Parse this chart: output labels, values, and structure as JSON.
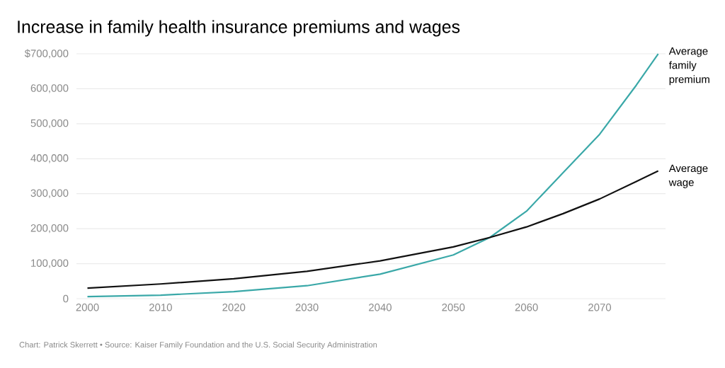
{
  "chart_data": {
    "type": "line",
    "title": "Increase in family health insurance premiums and wages",
    "annotations": [
      "Chart: Patrick Skerrett • Source: Kaiser Family Foundation and the U.S. Social Security Administration"
    ],
    "x": [
      2000,
      2010,
      2020,
      2030,
      2040,
      2050,
      2055,
      2060,
      2065,
      2070,
      2075,
      2078
    ],
    "series": [
      {
        "name": "Average family premium",
        "color": "#3aa8a8",
        "values": [
          6000,
          10000,
          20000,
          37000,
          70000,
          125000,
          175000,
          250000,
          360000,
          470000,
          610000,
          700000
        ]
      },
      {
        "name": "Average wage",
        "color": "#111111",
        "values": [
          30000,
          42000,
          57000,
          78000,
          108000,
          148000,
          175000,
          205000,
          243000,
          285000,
          335000,
          365000
        ]
      }
    ],
    "xlim": [
      1998.5,
      2079
    ],
    "ylim": [
      0,
      700000
    ],
    "xticks": [
      2000,
      2010,
      2020,
      2030,
      2040,
      2050,
      2060,
      2070
    ],
    "yticks": [
      {
        "value": 0,
        "label": "0"
      },
      {
        "value": 100000,
        "label": "100,000"
      },
      {
        "value": 200000,
        "label": "200,000"
      },
      {
        "value": 300000,
        "label": "300,000"
      },
      {
        "value": 400000,
        "label": "400,000"
      },
      {
        "value": 500000,
        "label": "500,000"
      },
      {
        "value": 600000,
        "label": "600,000"
      },
      {
        "value": 700000,
        "label": "$700,000"
      }
    ],
    "grid": "y",
    "line_style": "solid",
    "marker": "none"
  }
}
